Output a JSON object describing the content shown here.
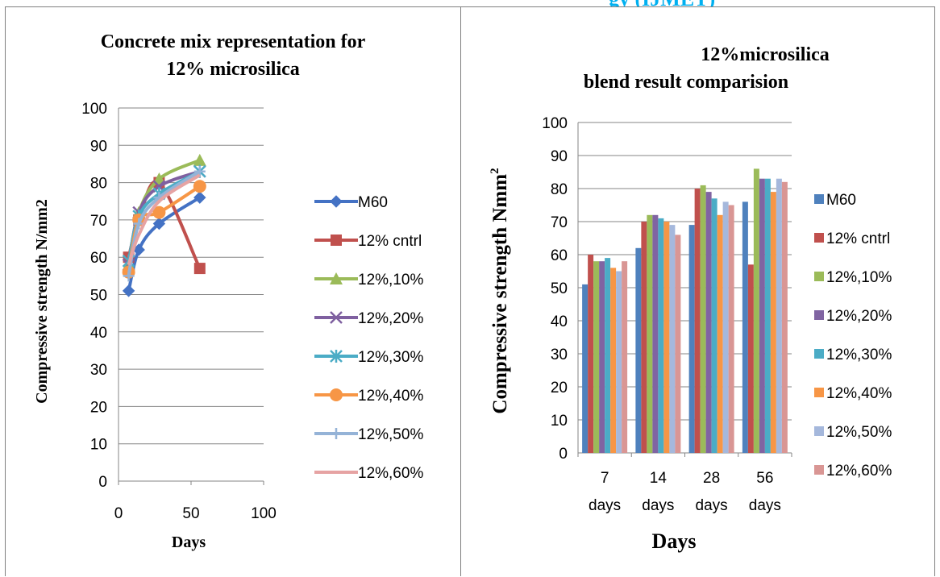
{
  "header_fragment": "gy (IJMET)",
  "chart_data": [
    {
      "type": "line",
      "title_lines": [
        "Concrete mix representation for",
        "12% microsilica"
      ],
      "xlabel": "Days",
      "ylabel": "Compressive strength N/mm2",
      "xlim": [
        0,
        100
      ],
      "ylim": [
        0,
        100
      ],
      "xticks": [
        0,
        50,
        100
      ],
      "yticks": [
        0,
        10,
        20,
        30,
        40,
        50,
        60,
        70,
        80,
        90,
        100
      ],
      "grid": "horizontal",
      "legend": "right",
      "x": [
        7,
        14,
        28,
        56
      ],
      "series": [
        {
          "name": "M60",
          "values": [
            51,
            62,
            69,
            76
          ],
          "color": "#4472c4",
          "marker": "diamond"
        },
        {
          "name": "12% cntrl",
          "values": [
            60,
            70,
            80,
            57
          ],
          "color": "#c0504d",
          "marker": "square"
        },
        {
          "name": "12%,10%",
          "values": [
            58,
            72,
            81,
            86
          ],
          "color": "#9bbb59",
          "marker": "triangle"
        },
        {
          "name": "12%,20%",
          "values": [
            58,
            72,
            79,
            83
          ],
          "color": "#7f60a0",
          "marker": "x"
        },
        {
          "name": "12%,30%",
          "values": [
            59,
            71,
            77,
            83
          ],
          "color": "#4bacc6",
          "marker": "star"
        },
        {
          "name": "12%,40%",
          "values": [
            56,
            70,
            72,
            79
          ],
          "color": "#f79646",
          "marker": "circle"
        },
        {
          "name": "12%,50%",
          "values": [
            55,
            69,
            76,
            83
          ],
          "color": "#95b3d7",
          "marker": "plus"
        },
        {
          "name": "12%,60%",
          "values": [
            58,
            66,
            75,
            82
          ],
          "color": "#e6a3a3",
          "marker": "none"
        }
      ]
    },
    {
      "type": "bar",
      "title_lines": [
        "12%microsilica",
        "blend result comparision"
      ],
      "xlabel": "Days",
      "ylabel": "Compressive strength Nmm",
      "ylabel_superscript": "2",
      "ylim": [
        0,
        100
      ],
      "yticks": [
        0,
        10,
        20,
        30,
        40,
        50,
        60,
        70,
        80,
        90,
        100
      ],
      "grid": "horizontal",
      "legend": "right",
      "categories": [
        [
          "7",
          "days"
        ],
        [
          "14",
          "days"
        ],
        [
          "28",
          "days"
        ],
        [
          "56",
          "days"
        ]
      ],
      "series": [
        {
          "name": "M60",
          "values": [
            51,
            62,
            69,
            76
          ],
          "color": "#4f81bd"
        },
        {
          "name": "12% cntrl",
          "values": [
            60,
            70,
            80,
            57
          ],
          "color": "#c0504d"
        },
        {
          "name": "12%,10%",
          "values": [
            58,
            72,
            81,
            86
          ],
          "color": "#9bbb59"
        },
        {
          "name": "12%,20%",
          "values": [
            58,
            72,
            79,
            83
          ],
          "color": "#8064a2"
        },
        {
          "name": "12%,30%",
          "values": [
            59,
            71,
            77,
            83
          ],
          "color": "#4bacc6"
        },
        {
          "name": "12%,40%",
          "values": [
            56,
            70,
            72,
            79
          ],
          "color": "#f79646"
        },
        {
          "name": "12%,50%",
          "values": [
            55,
            69,
            76,
            83
          ],
          "color": "#a5b8dc"
        },
        {
          "name": "12%,60%",
          "values": [
            58,
            66,
            75,
            82
          ],
          "color": "#d99694"
        }
      ]
    }
  ]
}
